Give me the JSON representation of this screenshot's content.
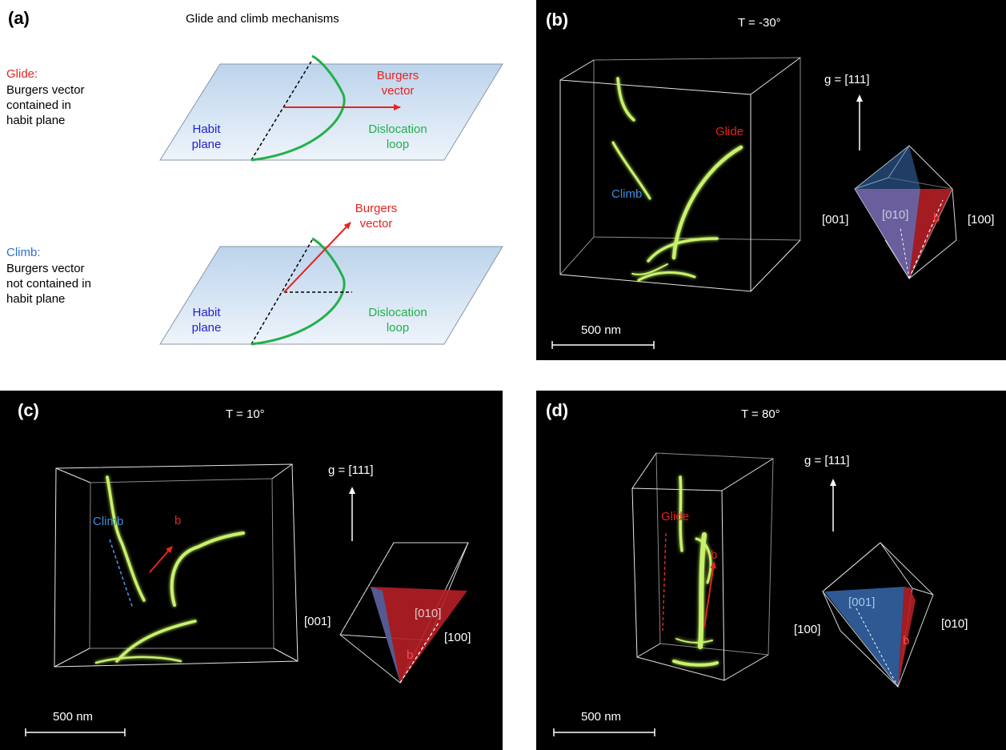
{
  "colors": {
    "glide_red": "#e8231e",
    "climb_blue": "#2a6fd6",
    "habit_blue": "#1f1fcf",
    "loop_green": "#22b04a",
    "dark_bg": "#000000",
    "dislocation_green": "#c7f36a"
  },
  "panel_a": {
    "label": "(a)",
    "title": "Glide and climb mechanisms",
    "glide": {
      "heading": "Glide:",
      "desc_1": "Burgers vector",
      "desc_2": "contained in",
      "desc_3": "habit plane",
      "burgers_1": "Burgers",
      "burgers_2": "vector",
      "habit_1": "Habit",
      "habit_2": "plane",
      "loop_1": "Dislocation",
      "loop_2": "loop"
    },
    "climb": {
      "heading": "Climb:",
      "desc_1": "Burgers vector",
      "desc_2": "not contained in",
      "desc_3": "habit plane",
      "burgers_1": "Burgers",
      "burgers_2": "vector",
      "habit_1": "Habit",
      "habit_2": "plane",
      "loop_1": "Dislocation",
      "loop_2": "loop"
    }
  },
  "panel_b": {
    "label": "(b)",
    "temperature": "T = -30°",
    "g_vector": "g = [111]",
    "glide_label": "Glide",
    "climb_label": "Climb",
    "axis_left": "[001]",
    "axis_center": "[010]",
    "axis_right": "[100]",
    "b_label": "b",
    "scale": "500 nm"
  },
  "panel_c": {
    "label": "(c)",
    "temperature": "T = 10°",
    "g_vector": "g = [111]",
    "climb_label": "Climb",
    "b_arrow_label": "b",
    "axis_left": "[001]",
    "axis_center": "[010]",
    "axis_right": "[100]",
    "b_label": "b",
    "scale": "500 nm"
  },
  "panel_d": {
    "label": "(d)",
    "temperature": "T = 80°",
    "g_vector": "g = [111]",
    "glide_label": "Glide",
    "b_arrow_label": "b",
    "axis_left": "[100]",
    "axis_center": "[001]",
    "axis_right": "[010]",
    "b_label": "b",
    "scale": "500 nm"
  }
}
